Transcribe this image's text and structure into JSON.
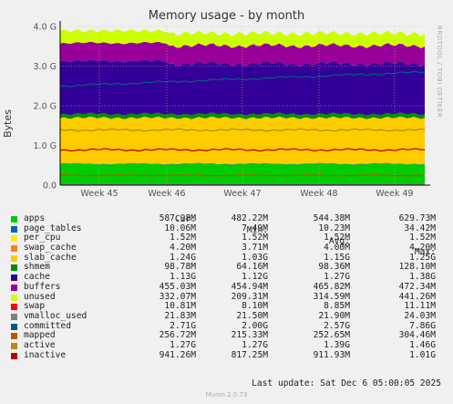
{
  "chart_data": {
    "type": "area",
    "title": "Memory usage - by month",
    "ylabel": "Bytes",
    "side_label": "RRDTOOL / TOBI OETIKER",
    "ylim": [
      0,
      4
    ],
    "y_ticks": [
      "0.0",
      "1.0 G",
      "2.0 G",
      "3.0 G",
      "4.0 G"
    ],
    "x_ticks": [
      "Week 45",
      "Week 46",
      "Week 47",
      "Week 48",
      "Week 49"
    ],
    "stack_order": [
      "apps",
      "page_tables",
      "per_cpu",
      "swap_cache",
      "slab_cache",
      "shmem",
      "cache",
      "buffers",
      "unused"
    ],
    "line_series": [
      "swap",
      "vmalloc_used",
      "committed",
      "mapped",
      "active",
      "inactive"
    ],
    "columns": [
      "Cur:",
      "Min:",
      "Avg:",
      "Max:"
    ],
    "legend": [
      {
        "name": "apps",
        "color": "#00cc00",
        "cur": "587.98M",
        "min": "482.22M",
        "avg": "544.38M",
        "max": "629.73M"
      },
      {
        "name": "page_tables",
        "color": "#0066b3",
        "cur": "10.06M",
        "min": "7.49M",
        "avg": "10.23M",
        "max": "34.42M"
      },
      {
        "name": "per_cpu",
        "color": "#ffee00",
        "cur": "1.52M",
        "min": "1.52M",
        "avg": "1.52M",
        "max": "1.52M"
      },
      {
        "name": "swap_cache",
        "color": "#ff8000",
        "cur": "4.20M",
        "min": "3.71M",
        "avg": "4.00M",
        "max": "4.20M"
      },
      {
        "name": "slab_cache",
        "color": "#ffcc00",
        "cur": "1.24G",
        "min": "1.03G",
        "avg": "1.15G",
        "max": "1.25G"
      },
      {
        "name": "shmem",
        "color": "#008f00",
        "cur": "98.78M",
        "min": "64.16M",
        "avg": "98.36M",
        "max": "128.10M"
      },
      {
        "name": "cache",
        "color": "#330099",
        "cur": "1.13G",
        "min": "1.12G",
        "avg": "1.27G",
        "max": "1.38G"
      },
      {
        "name": "buffers",
        "color": "#990099",
        "cur": "455.03M",
        "min": "454.94M",
        "avg": "465.82M",
        "max": "472.34M"
      },
      {
        "name": "unused",
        "color": "#ccff00",
        "cur": "332.07M",
        "min": "209.31M",
        "avg": "314.59M",
        "max": "441.26M"
      },
      {
        "name": "swap",
        "color": "#ff0000",
        "cur": "10.81M",
        "min": "8.10M",
        "avg": "8.85M",
        "max": "11.11M"
      },
      {
        "name": "vmalloc_used",
        "color": "#808080",
        "cur": "21.83M",
        "min": "21.50M",
        "avg": "21.90M",
        "max": "24.03M"
      },
      {
        "name": "committed",
        "color": "#005a7f",
        "cur": "2.71G",
        "min": "2.00G",
        "avg": "2.57G",
        "max": "7.86G"
      },
      {
        "name": "mapped",
        "color": "#b35a00",
        "cur": "256.72M",
        "min": "215.33M",
        "avg": "252.65M",
        "max": "304.46M"
      },
      {
        "name": "active",
        "color": "#b38f00",
        "cur": "1.27G",
        "min": "1.27G",
        "avg": "1.39G",
        "max": "1.46G"
      },
      {
        "name": "inactive",
        "color": "#c00000",
        "cur": "941.26M",
        "min": "817.25M",
        "avg": "911.93M",
        "max": "1.01G"
      }
    ],
    "grid": true
  },
  "last_update": "Last update: Sat Dec  6 05:00:05 2025",
  "footer": "Munin 2.0.73"
}
